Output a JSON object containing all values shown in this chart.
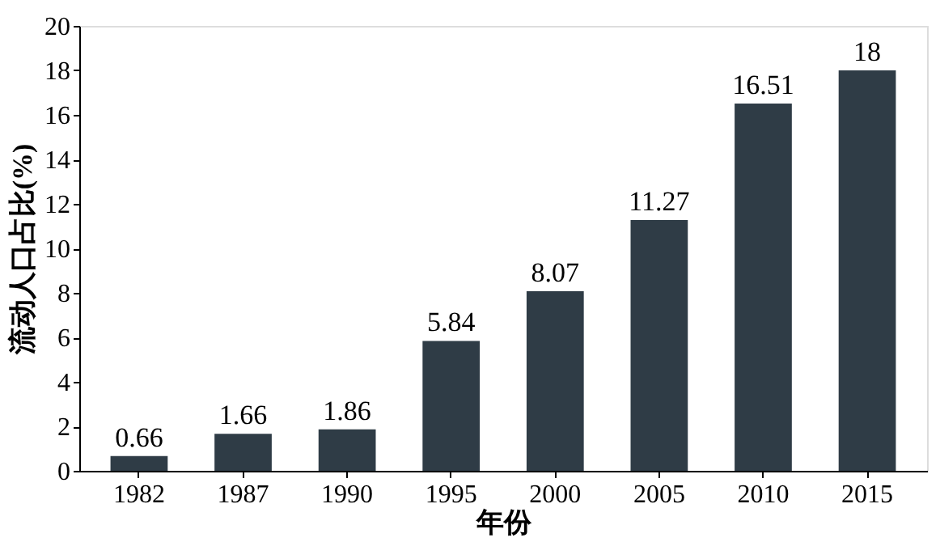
{
  "chart_data": {
    "type": "bar",
    "xlabel": "年份",
    "ylabel": "流动人口占比(%)",
    "categories": [
      "1982",
      "1987",
      "1990",
      "1995",
      "2000",
      "2005",
      "2010",
      "2015"
    ],
    "values": [
      0.66,
      1.66,
      1.86,
      5.84,
      8.07,
      11.27,
      16.51,
      18
    ],
    "color": "#2f3c46",
    "ylim": [
      0,
      20
    ],
    "yticks": [
      0,
      2,
      4,
      6,
      8,
      10,
      12,
      14,
      16,
      18,
      20
    ],
    "data_labels": true,
    "grid": false
  }
}
